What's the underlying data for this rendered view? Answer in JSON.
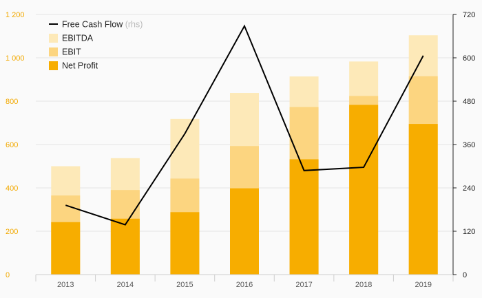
{
  "chart_data": {
    "type": "bar",
    "stacked_note": "overlapping bars, Net Profit drawn in front of EBIT, EBIT in front of EBITDA",
    "categories": [
      "2013",
      "2014",
      "2015",
      "2016",
      "2017",
      "2018",
      "2019"
    ],
    "series": [
      {
        "name": "EBITDA",
        "type": "bar",
        "axis": "left",
        "color": "#fde9b8",
        "values": [
          500,
          537,
          718,
          838,
          914,
          983,
          1104
        ]
      },
      {
        "name": "EBIT",
        "type": "bar",
        "axis": "left",
        "color": "#fcd580",
        "values": [
          365,
          390,
          443,
          593,
          773,
          824,
          915
        ]
      },
      {
        "name": "Net Profit",
        "type": "bar",
        "axis": "left",
        "color": "#f7ad00",
        "values": [
          242,
          258,
          288,
          398,
          532,
          783,
          695
        ]
      },
      {
        "name": "Free Cash Flow",
        "suffix": "(rhs)",
        "type": "line",
        "axis": "right",
        "color": "#000000",
        "values": [
          192,
          138,
          390,
          688,
          288,
          297,
          606
        ]
      }
    ],
    "yaxis_left": {
      "ylim": [
        0,
        1200
      ],
      "ticks": [
        0,
        200,
        400,
        600,
        800,
        1000,
        1200
      ],
      "tick_labels": [
        "0",
        "200",
        "400",
        "600",
        "800",
        "1 000",
        "1 200"
      ]
    },
    "yaxis_right": {
      "ylim": [
        0,
        720
      ],
      "ticks": [
        0,
        120,
        240,
        360,
        480,
        600,
        720
      ],
      "tick_labels": [
        "0",
        "120",
        "240",
        "360",
        "480",
        "600",
        "720"
      ]
    },
    "legend_position": "top-left",
    "legend_order": [
      "Free Cash Flow",
      "EBITDA",
      "EBIT",
      "Net Profit"
    ],
    "grid": true,
    "title": "",
    "xlabel": "",
    "ylabel": ""
  }
}
